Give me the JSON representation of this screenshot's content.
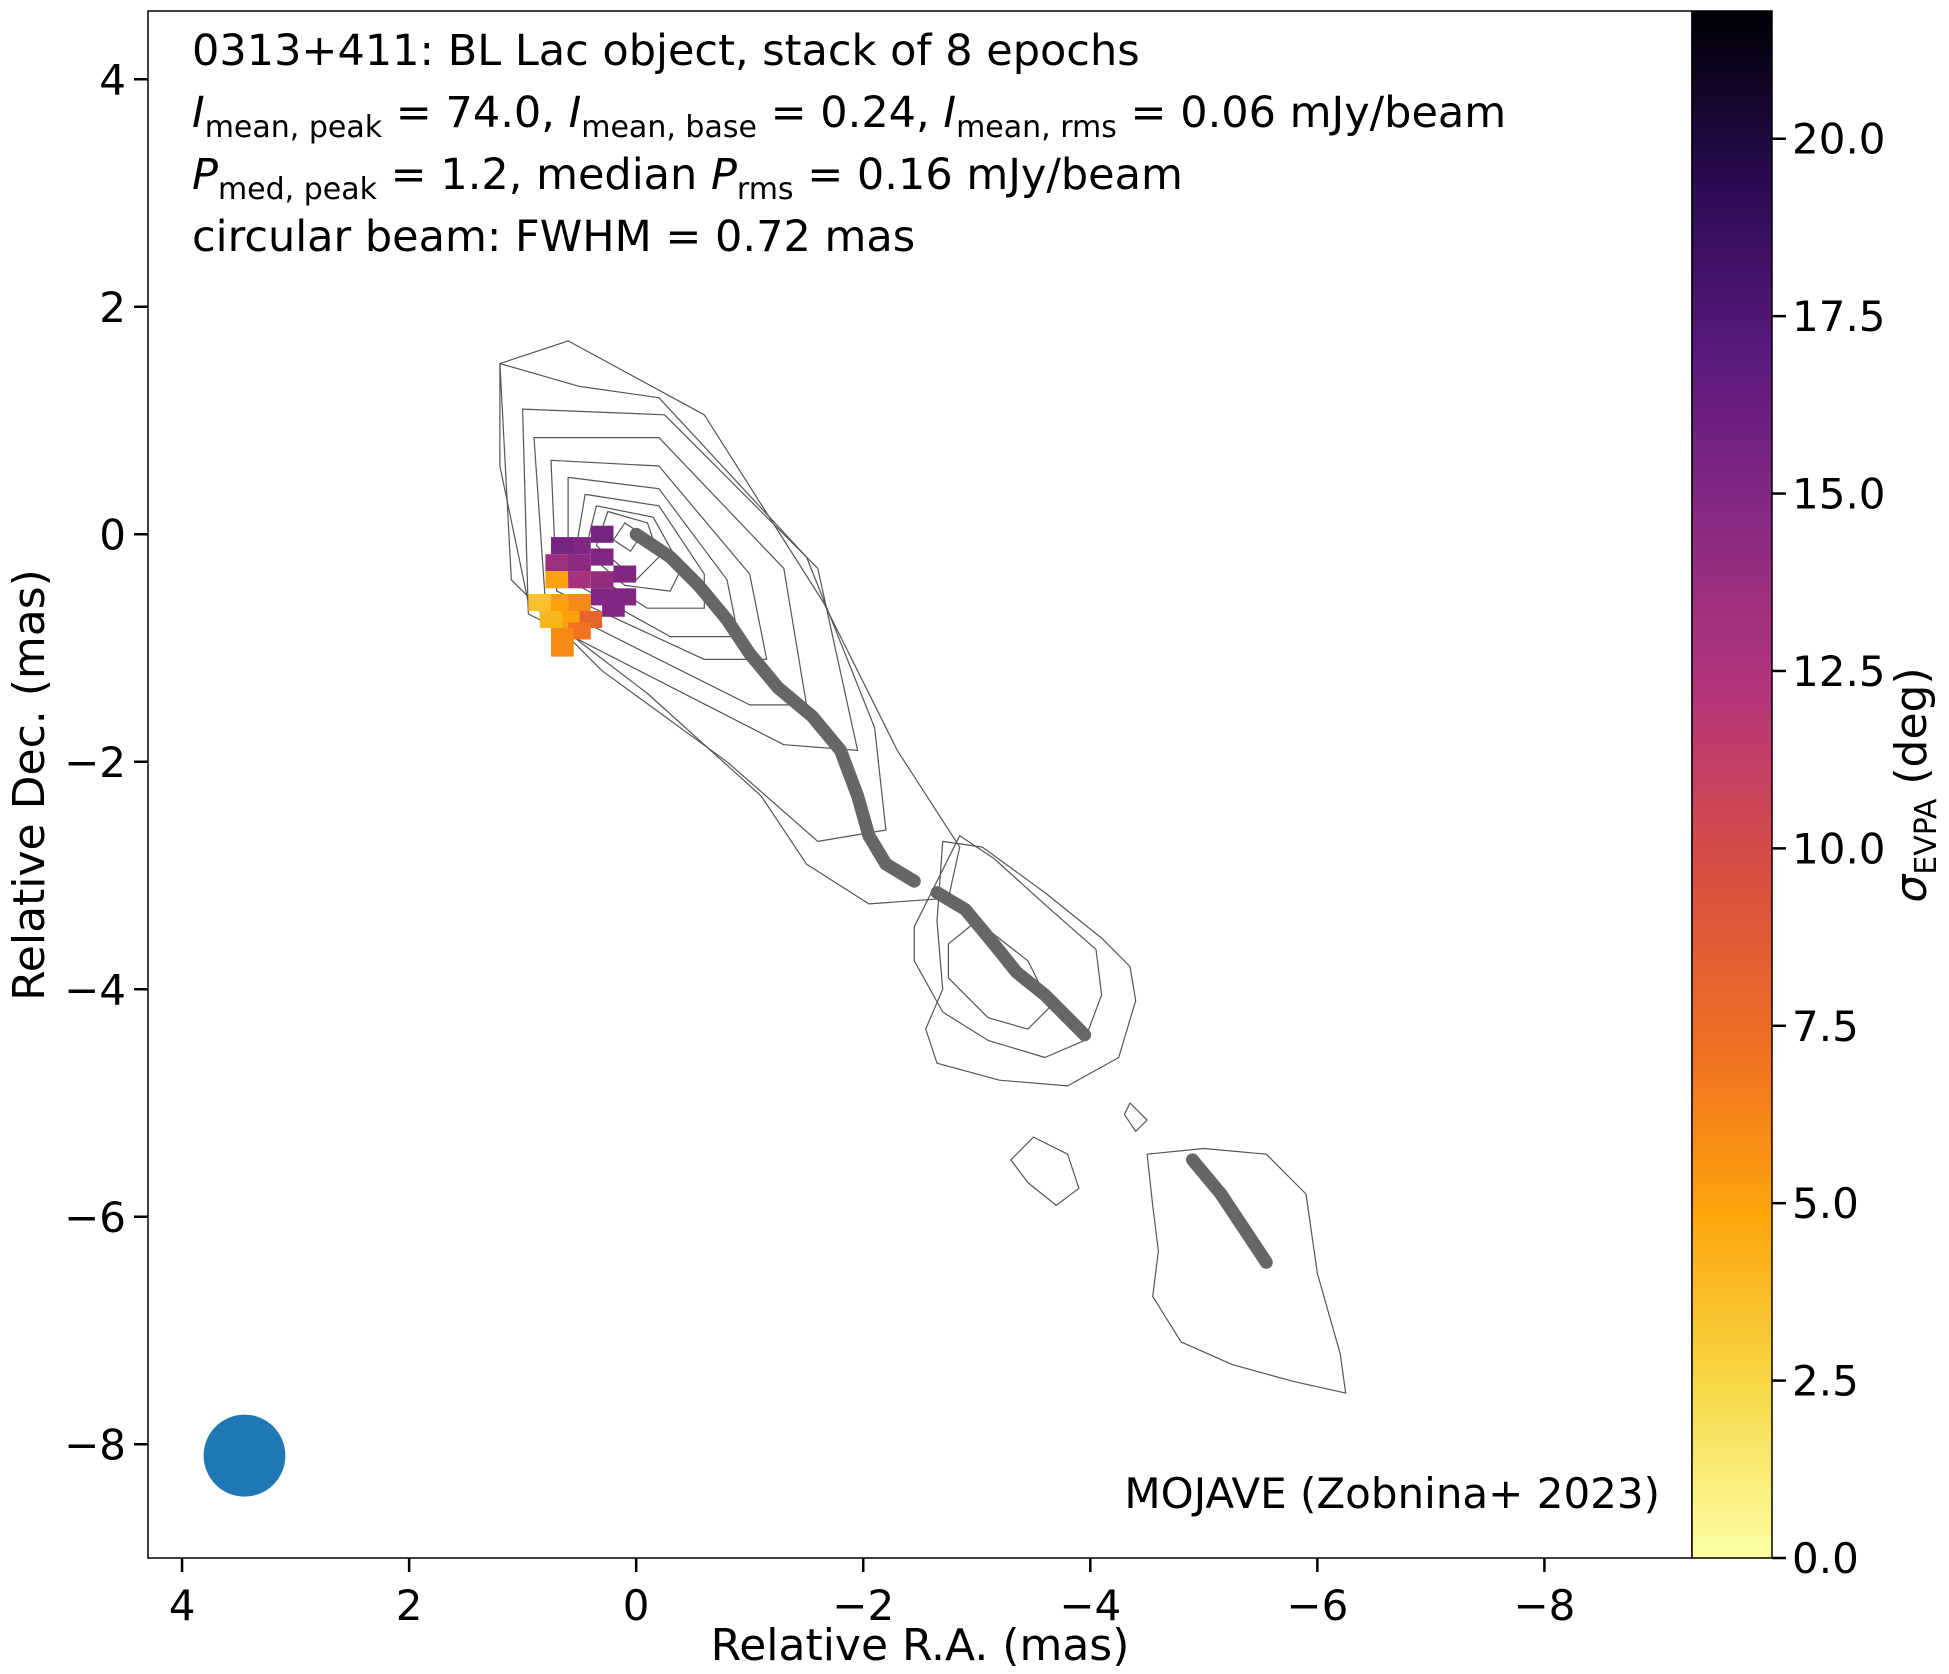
{
  "chart_data": {
    "type": "heatmap",
    "title_lines": [
      {
        "segments": [
          {
            "t": "0313+411: BL Lac object, stack of 8 epochs"
          }
        ]
      },
      {
        "segments": [
          {
            "t": "I",
            "style": "italic"
          },
          {
            "t": "mean, peak",
            "style": "sub"
          },
          {
            "t": " = 74.0, "
          },
          {
            "t": "I",
            "style": "italic"
          },
          {
            "t": "mean, base",
            "style": "sub"
          },
          {
            "t": " = 0.24, "
          },
          {
            "t": "I",
            "style": "italic"
          },
          {
            "t": "mean, rms",
            "style": "sub"
          },
          {
            "t": " = 0.06 mJy/beam"
          }
        ]
      },
      {
        "segments": [
          {
            "t": "P",
            "style": "italic"
          },
          {
            "t": "med, peak",
            "style": "sub"
          },
          {
            "t": " = 1.2, median "
          },
          {
            "t": "P",
            "style": "italic"
          },
          {
            "t": "rms",
            "style": "sub"
          },
          {
            "t": " = 0.16 mJy/beam"
          }
        ]
      },
      {
        "segments": [
          {
            "t": "circular beam: FWHM = 0.72 mas"
          }
        ]
      }
    ],
    "credit": "MOJAVE (Zobnina+ 2023)",
    "xlabel": "Relative R.A. (mas)",
    "ylabel": "Relative Dec. (mas)",
    "xlim": [
      4.3,
      -9.3
    ],
    "ylim": [
      -9.0,
      4.6
    ],
    "x_inverted": true,
    "xticks": [
      {
        "value": 4,
        "label": "4"
      },
      {
        "value": 2,
        "label": "2"
      },
      {
        "value": 0,
        "label": "0"
      },
      {
        "value": -2,
        "label": "−2"
      },
      {
        "value": -4,
        "label": "−4"
      },
      {
        "value": -6,
        "label": "−6"
      },
      {
        "value": -8,
        "label": "−8"
      }
    ],
    "yticks": [
      {
        "value": 4,
        "label": "4"
      },
      {
        "value": 2,
        "label": "2"
      },
      {
        "value": 0,
        "label": "0"
      },
      {
        "value": -2,
        "label": "−2"
      },
      {
        "value": -4,
        "label": "−4"
      },
      {
        "value": -6,
        "label": "−6"
      },
      {
        "value": -8,
        "label": "−8"
      }
    ],
    "colorbar": {
      "label_main": "σ",
      "label_sub": "EVPA",
      "label_rest": " (deg)",
      "range": [
        0,
        21.8
      ],
      "colormap": "inferno_r",
      "stops": [
        "#fcffa4",
        "#f6d746",
        "#fca50a",
        "#f06c23",
        "#d94e42",
        "#b5367a",
        "#8b2a82",
        "#5a1a7e",
        "#2a0b52",
        "#000004"
      ],
      "ticks": [
        {
          "value": 0.0,
          "label": "0.0"
        },
        {
          "value": 2.5,
          "label": "2.5"
        },
        {
          "value": 5.0,
          "label": "5.0"
        },
        {
          "value": 7.5,
          "label": "7.5"
        },
        {
          "value": 10.0,
          "label": "10.0"
        },
        {
          "value": 12.5,
          "label": "12.5"
        },
        {
          "value": 15.0,
          "label": "15.0"
        },
        {
          "value": 17.5,
          "label": "17.5"
        },
        {
          "value": 20.0,
          "label": "20.0"
        }
      ]
    },
    "beam": {
      "x": 3.45,
      "y": -8.1,
      "fwhm": 0.72,
      "color": "#1f77b4"
    },
    "ridge_line": {
      "color": "#666666",
      "segments": [
        [
          [
            0,
            0
          ],
          [
            -0.3,
            -0.2
          ],
          [
            -0.55,
            -0.45
          ],
          [
            -0.8,
            -0.75
          ],
          [
            -1.0,
            -1.05
          ],
          [
            -1.25,
            -1.35
          ],
          [
            -1.55,
            -1.6
          ],
          [
            -1.8,
            -1.9
          ],
          [
            -1.95,
            -2.3
          ],
          [
            -2.05,
            -2.65
          ],
          [
            -2.2,
            -2.9
          ],
          [
            -2.45,
            -3.05
          ]
        ],
        [
          [
            -2.65,
            -3.15
          ],
          [
            -2.9,
            -3.3
          ],
          [
            -3.15,
            -3.6
          ],
          [
            -3.35,
            -3.85
          ],
          [
            -3.6,
            -4.05
          ],
          [
            -3.95,
            -4.4
          ]
        ],
        [
          [
            -4.9,
            -5.5
          ],
          [
            -5.15,
            -5.8
          ],
          [
            -5.35,
            -6.1
          ],
          [
            -5.55,
            -6.4
          ]
        ]
      ]
    },
    "evpa_pixels": [
      {
        "x": 0.3,
        "y": 0.0,
        "v": 15.5
      },
      {
        "x": 0.5,
        "y": -0.1,
        "v": 15.0
      },
      {
        "x": 0.65,
        "y": -0.1,
        "v": 15.5
      },
      {
        "x": 0.3,
        "y": -0.2,
        "v": 15.0
      },
      {
        "x": 0.5,
        "y": -0.25,
        "v": 14.5
      },
      {
        "x": 0.7,
        "y": -0.25,
        "v": 13.5
      },
      {
        "x": 0.1,
        "y": -0.35,
        "v": 15.0
      },
      {
        "x": 0.3,
        "y": -0.4,
        "v": 14.0
      },
      {
        "x": 0.5,
        "y": -0.4,
        "v": 13.0
      },
      {
        "x": 0.7,
        "y": -0.4,
        "v": 5.0
      },
      {
        "x": 0.1,
        "y": -0.55,
        "v": 15.0
      },
      {
        "x": 0.3,
        "y": -0.55,
        "v": 15.0
      },
      {
        "x": 0.5,
        "y": -0.6,
        "v": 6.0
      },
      {
        "x": 0.7,
        "y": -0.6,
        "v": 5.0
      },
      {
        "x": 0.85,
        "y": -0.6,
        "v": 3.5
      },
      {
        "x": 0.2,
        "y": -0.65,
        "v": 15.0
      },
      {
        "x": 0.4,
        "y": -0.75,
        "v": 8.0
      },
      {
        "x": 0.6,
        "y": -0.75,
        "v": 5.0
      },
      {
        "x": 0.75,
        "y": -0.75,
        "v": 4.0
      },
      {
        "x": 0.5,
        "y": -0.85,
        "v": 7.0
      },
      {
        "x": 0.65,
        "y": -0.9,
        "v": 6.0
      },
      {
        "x": 0.65,
        "y": -1.0,
        "v": 6.0
      }
    ],
    "contours": [
      [
        [
          0.1,
          0.1
        ],
        [
          -0.05,
          0.0
        ],
        [
          0.05,
          -0.15
        ],
        [
          0.2,
          -0.05
        ],
        [
          0.1,
          0.1
        ]
      ],
      [
        [
          0.25,
          0.2
        ],
        [
          -0.1,
          0.1
        ],
        [
          -0.2,
          -0.2
        ],
        [
          0.0,
          -0.4
        ],
        [
          0.35,
          -0.1
        ],
        [
          0.25,
          0.2
        ]
      ],
      [
        [
          0.35,
          0.25
        ],
        [
          -0.15,
          0.15
        ],
        [
          -0.4,
          -0.3
        ],
        [
          -0.3,
          -0.5
        ],
        [
          0.1,
          -0.45
        ],
        [
          0.45,
          -0.15
        ],
        [
          0.35,
          0.25
        ]
      ],
      [
        [
          0.45,
          0.35
        ],
        [
          -0.2,
          0.25
        ],
        [
          -0.6,
          -0.35
        ],
        [
          -0.6,
          -0.65
        ],
        [
          -0.1,
          -0.65
        ],
        [
          0.55,
          -0.25
        ],
        [
          0.45,
          0.35
        ]
      ],
      [
        [
          0.6,
          0.5
        ],
        [
          -0.2,
          0.4
        ],
        [
          -0.8,
          -0.4
        ],
        [
          -0.9,
          -0.9
        ],
        [
          -0.3,
          -0.9
        ],
        [
          0.6,
          -0.4
        ],
        [
          0.6,
          0.5
        ]
      ],
      [
        [
          0.75,
          0.65
        ],
        [
          -0.2,
          0.6
        ],
        [
          -1.0,
          -0.35
        ],
        [
          -1.15,
          -1.1
        ],
        [
          -0.6,
          -1.1
        ],
        [
          0.7,
          -0.5
        ],
        [
          0.75,
          0.65
        ]
      ],
      [
        [
          0.9,
          0.85
        ],
        [
          -0.2,
          0.85
        ],
        [
          -1.3,
          -0.3
        ],
        [
          -1.5,
          -1.5
        ],
        [
          -1.0,
          -1.5
        ],
        [
          0.8,
          -0.6
        ],
        [
          0.9,
          0.85
        ]
      ],
      [
        [
          1.0,
          1.1
        ],
        [
          -0.25,
          1.05
        ],
        [
          -1.6,
          -0.3
        ],
        [
          -1.95,
          -1.9
        ],
        [
          -1.3,
          -1.85
        ],
        [
          0.95,
          -0.7
        ],
        [
          1.0,
          1.1
        ]
      ],
      [
        [
          1.2,
          1.5
        ],
        [
          0.5,
          1.3
        ],
        [
          -0.2,
          1.2
        ],
        [
          -1.5,
          -0.2
        ],
        [
          -2.1,
          -1.7
        ],
        [
          -2.2,
          -2.6
        ],
        [
          -1.6,
          -2.7
        ],
        [
          -0.8,
          -2.0
        ],
        [
          0.3,
          -1.2
        ],
        [
          1.1,
          -0.4
        ],
        [
          1.2,
          1.5
        ]
      ],
      [
        [
          0.6,
          1.7
        ],
        [
          -0.6,
          1.05
        ],
        [
          -1.65,
          -0.6
        ],
        [
          -2.3,
          -1.9
        ],
        [
          -2.85,
          -2.75
        ],
        [
          -2.75,
          -3.2
        ],
        [
          -2.05,
          -3.25
        ],
        [
          -1.5,
          -2.9
        ],
        [
          -1.1,
          -2.3
        ],
        [
          -0.1,
          -1.4
        ],
        [
          0.95,
          -0.6
        ],
        [
          1.2,
          0.6
        ],
        [
          1.2,
          1.5
        ],
        [
          0.6,
          1.7
        ]
      ],
      [
        [
          -2.75,
          -3.6
        ],
        [
          -3.0,
          -3.4
        ],
        [
          -3.45,
          -3.75
        ],
        [
          -3.65,
          -4.15
        ],
        [
          -3.45,
          -4.35
        ],
        [
          -3.1,
          -4.25
        ],
        [
          -2.75,
          -3.9
        ],
        [
          -2.75,
          -3.6
        ]
      ],
      [
        [
          -2.45,
          -3.45
        ],
        [
          -2.85,
          -2.65
        ],
        [
          -3.15,
          -2.85
        ],
        [
          -3.65,
          -3.3
        ],
        [
          -4.05,
          -3.65
        ],
        [
          -4.1,
          -4.05
        ],
        [
          -3.95,
          -4.45
        ],
        [
          -3.6,
          -4.6
        ],
        [
          -3.1,
          -4.45
        ],
        [
          -2.7,
          -4.2
        ],
        [
          -2.45,
          -3.75
        ],
        [
          -2.45,
          -3.45
        ]
      ],
      [
        [
          -2.65,
          -3.4
        ],
        [
          -2.7,
          -2.7
        ],
        [
          -3.05,
          -2.75
        ],
        [
          -3.6,
          -3.15
        ],
        [
          -4.1,
          -3.55
        ],
        [
          -4.35,
          -3.8
        ],
        [
          -4.4,
          -4.1
        ],
        [
          -4.25,
          -4.6
        ],
        [
          -3.8,
          -4.85
        ],
        [
          -3.2,
          -4.8
        ],
        [
          -2.65,
          -4.65
        ],
        [
          -2.55,
          -4.35
        ],
        [
          -2.7,
          -4.0
        ],
        [
          -2.65,
          -3.4
        ]
      ],
      [
        [
          -4.35,
          -5.0
        ],
        [
          -4.5,
          -5.15
        ],
        [
          -4.4,
          -5.25
        ],
        [
          -4.3,
          -5.1
        ],
        [
          -4.35,
          -5.0
        ]
      ],
      [
        [
          -3.5,
          -5.3
        ],
        [
          -3.8,
          -5.45
        ],
        [
          -3.9,
          -5.75
        ],
        [
          -3.7,
          -5.9
        ],
        [
          -3.45,
          -5.7
        ],
        [
          -3.3,
          -5.5
        ],
        [
          -3.5,
          -5.3
        ]
      ],
      [
        [
          -4.5,
          -5.45
        ],
        [
          -5.0,
          -5.4
        ],
        [
          -5.55,
          -5.45
        ],
        [
          -5.9,
          -5.8
        ],
        [
          -6.0,
          -6.5
        ],
        [
          -6.2,
          -7.2
        ],
        [
          -6.25,
          -7.55
        ],
        [
          -5.8,
          -7.45
        ],
        [
          -5.25,
          -7.3
        ],
        [
          -4.8,
          -7.1
        ],
        [
          -4.55,
          -6.7
        ],
        [
          -4.6,
          -6.3
        ],
        [
          -4.55,
          -5.9
        ],
        [
          -4.5,
          -5.45
        ]
      ]
    ]
  }
}
